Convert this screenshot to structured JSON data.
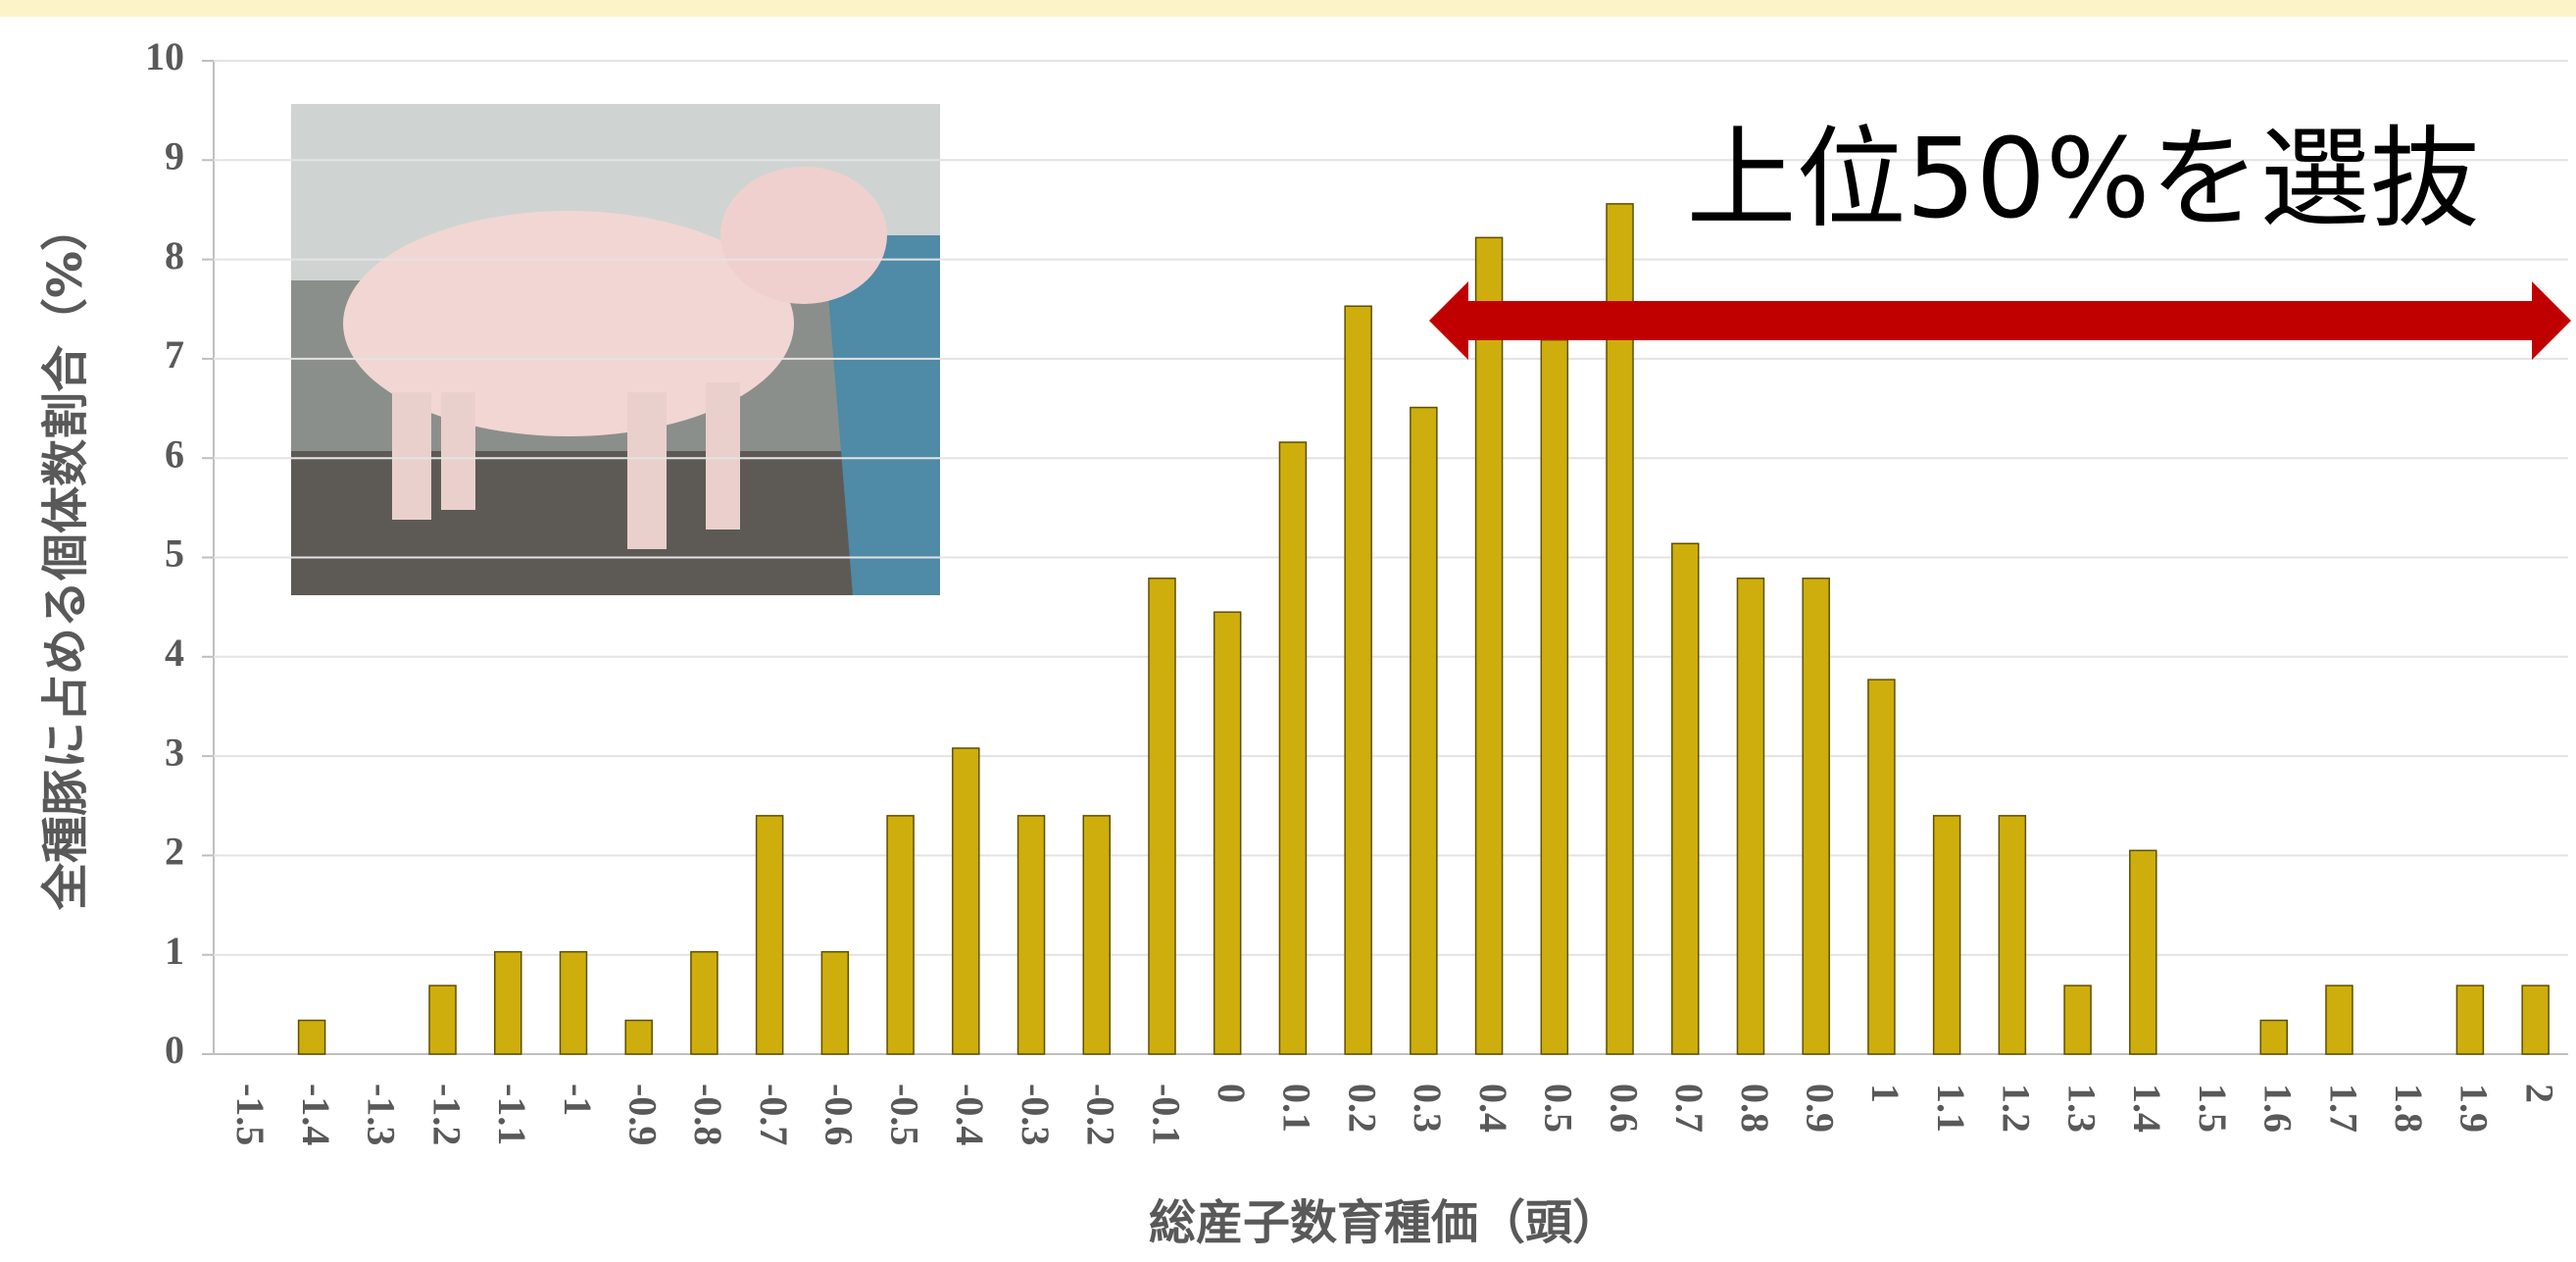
{
  "chart_data": {
    "type": "bar",
    "title_annotation": "上位50%を選抜",
    "x_label": "総産子数育種価（頭）",
    "y_label": "全種豚に占める個体数割合（%）",
    "categories": [
      "-1.5",
      "-1.4",
      "-1.3",
      "-1.2",
      "-1.1",
      "-1",
      "-0.9",
      "-0.8",
      "-0.7",
      "-0.6",
      "-0.5",
      "-0.4",
      "-0.3",
      "-0.2",
      "-0.1",
      "0",
      "0.1",
      "0.2",
      "0.3",
      "0.4",
      "0.5",
      "0.6",
      "0.7",
      "0.8",
      "0.9",
      "1",
      "1.1",
      "1.2",
      "1.3",
      "1.4",
      "1.5",
      "1.6",
      "1.7",
      "1.8",
      "1.9",
      "2"
    ],
    "values": [
      0,
      0.34,
      0,
      0.69,
      1.03,
      1.03,
      0.34,
      1.03,
      2.4,
      1.03,
      2.4,
      3.08,
      2.4,
      2.4,
      4.79,
      4.45,
      6.16,
      7.53,
      6.51,
      8.22,
      7.19,
      8.56,
      5.14,
      4.79,
      4.79,
      3.77,
      2.4,
      2.4,
      0.69,
      2.05,
      0,
      0.34,
      0.69,
      0,
      0.69,
      0.69
    ],
    "color": "#cdae0c",
    "ylim": [
      0,
      10
    ],
    "yticks": [
      0,
      1,
      2,
      3,
      4,
      5,
      6,
      7,
      8,
      9,
      10
    ],
    "grid": true
  }
}
